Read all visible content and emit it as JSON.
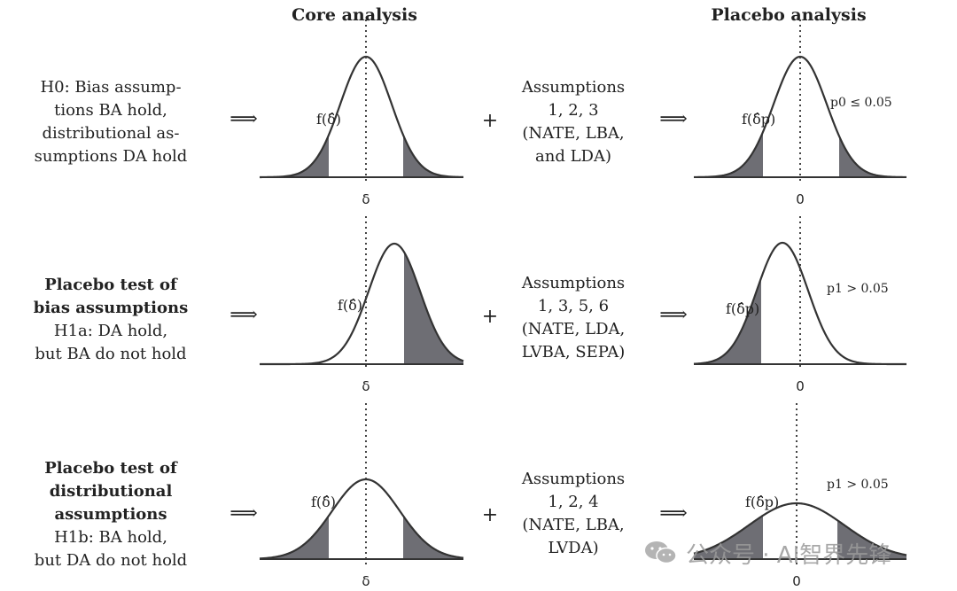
{
  "headers": {
    "core": "Core analysis",
    "placebo": "Placebo analysis"
  },
  "rows": [
    {
      "hypothesis_lines": [
        {
          "text": "H0: Bias assump-",
          "bold": false
        },
        {
          "text": "tions BA hold,",
          "bold": false
        },
        {
          "text": "distributional as-",
          "bold": false
        },
        {
          "text": "sumptions DA hold",
          "bold": false
        }
      ],
      "assumptions_lines": [
        "Assumptions",
        "1, 2, 3",
        "(NATE, LBA,",
        "and LDA)"
      ],
      "core_label": "f(δ̂)",
      "core_axis": "δ",
      "placebo_label": "f(δ̂p)",
      "placebo_axis": "0",
      "p_text": "p0 ≤ 0.05"
    },
    {
      "hypothesis_lines": [
        {
          "text": "Placebo test of",
          "bold": true
        },
        {
          "text": "bias assumptions",
          "bold": true
        },
        {
          "text": "H1a: DA hold,",
          "bold": false
        },
        {
          "text": "but BA do not hold",
          "bold": false
        }
      ],
      "assumptions_lines": [
        "Assumptions",
        "1, 3, 5, 6",
        "(NATE, LDA,",
        "LVBA, SEPA)"
      ],
      "core_label": "f(δ̂)",
      "core_axis": "δ",
      "placebo_label": "f(δ̂p)",
      "placebo_axis": "0",
      "p_text": "p1 > 0.05"
    },
    {
      "hypothesis_lines": [
        {
          "text": "Placebo test of",
          "bold": true
        },
        {
          "text": "distributional",
          "bold": true
        },
        {
          "text": "assumptions",
          "bold": true
        },
        {
          "text": "H1b: BA hold,",
          "bold": false
        },
        {
          "text": "but DA do not hold",
          "bold": false
        }
      ],
      "assumptions_lines": [
        "Assumptions",
        "1, 2, 4",
        "(NATE, LBA,",
        "LVDA)"
      ],
      "core_label": "f(δ̂)",
      "core_axis": "δ",
      "placebo_label": "f(δ̂p)",
      "placebo_axis": "0",
      "p_text": "p1 > 0.05"
    }
  ],
  "symbols": {
    "implies": "⟹",
    "plus": "+"
  },
  "watermark": {
    "text": "公众号 · AI智界先锋",
    "icon": "wechat-icon"
  },
  "colors": {
    "shade": "#6e6e74",
    "curve": "#333333"
  }
}
